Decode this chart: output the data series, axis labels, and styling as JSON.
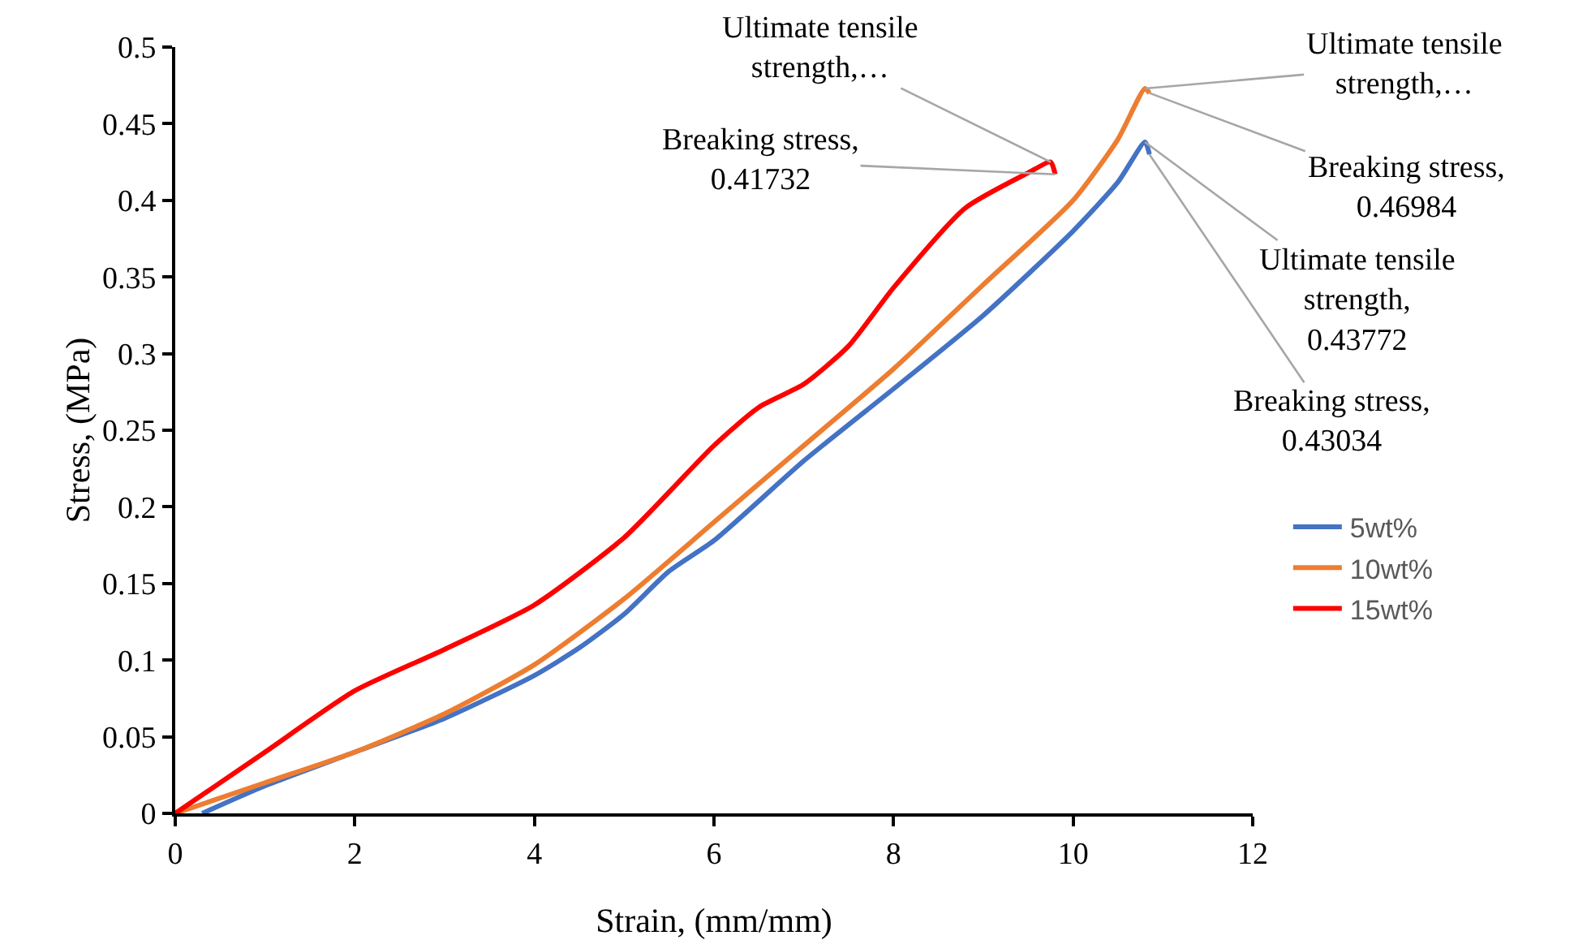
{
  "chart_data": {
    "type": "line",
    "xlabel": "Strain, (mm/mm)",
    "ylabel": "Stress, (MPa)",
    "xlim": [
      0,
      12
    ],
    "xticks": [
      0,
      2,
      4,
      6,
      8,
      10,
      12
    ],
    "ylim": [
      0,
      0.5
    ],
    "yticks": [
      0,
      0.05,
      0.1,
      0.15,
      0.2,
      0.25,
      0.3,
      0.35,
      0.4,
      0.45,
      0.5
    ],
    "grid": false,
    "legend": "right",
    "marker": "none",
    "line_style": "solid",
    "series": [
      {
        "name": "5wt%",
        "color": "#4472c4",
        "x": [
          0.3,
          1,
          2,
          3,
          4,
          4.5,
          5,
          5.5,
          6,
          7,
          8,
          9,
          10,
          10.5,
          10.8,
          10.85
        ],
        "values": [
          0,
          0.018,
          0.04,
          0.062,
          0.09,
          0.108,
          0.13,
          0.158,
          0.178,
          0.23,
          0.277,
          0.325,
          0.38,
          0.412,
          0.438,
          0.43
        ]
      },
      {
        "name": "10wt%",
        "color": "#ed7d31",
        "x": [
          0,
          1,
          2,
          3,
          4,
          5,
          6,
          7,
          8,
          9,
          10,
          10.5,
          10.8,
          10.85
        ],
        "values": [
          0,
          0.02,
          0.04,
          0.065,
          0.097,
          0.14,
          0.19,
          0.24,
          0.29,
          0.345,
          0.4,
          0.44,
          0.473,
          0.47
        ]
      },
      {
        "name": "15wt%",
        "color": "#ff0000",
        "x": [
          0,
          1,
          2,
          3,
          4,
          5,
          6,
          6.5,
          7,
          7.5,
          8,
          8.8,
          9.5,
          9.75,
          9.8
        ],
        "values": [
          0,
          0.04,
          0.08,
          0.107,
          0.136,
          0.18,
          0.24,
          0.265,
          0.28,
          0.305,
          0.343,
          0.395,
          0.418,
          0.425,
          0.417
        ]
      }
    ],
    "annotations": [
      {
        "text": "Ultimate tensile\nstrength,…",
        "x": 9.75,
        "y": 0.425
      },
      {
        "text": "Breaking stress,\n0.41732",
        "x": 9.8,
        "y": 0.417
      },
      {
        "text": "Ultimate tensile\nstrength,…",
        "x": 10.8,
        "y": 0.473
      },
      {
        "text": "Breaking stress,\n0.46984",
        "x": 10.85,
        "y": 0.47
      },
      {
        "text": "Ultimate tensile\nstrength,\n0.43772",
        "x": 10.8,
        "y": 0.438
      },
      {
        "text": "Breaking stress,\n0.43034",
        "x": 10.85,
        "y": 0.43
      }
    ]
  }
}
